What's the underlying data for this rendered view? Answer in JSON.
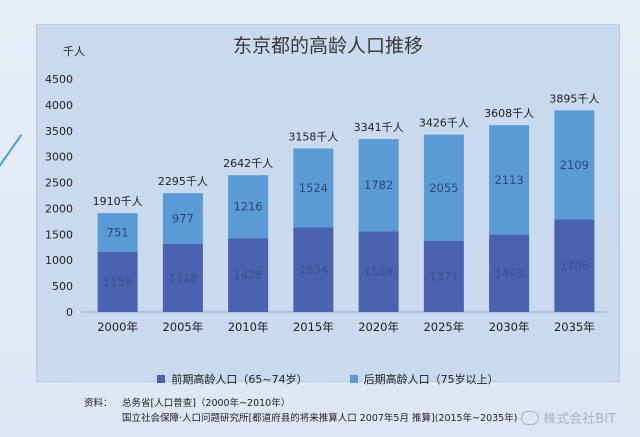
{
  "chart_data": {
    "type": "bar",
    "stacked": true,
    "title": "东京都的高龄人口推移",
    "unit_label": "千人",
    "categories": [
      "2000年",
      "2005年",
      "2010年",
      "2015年",
      "2020年",
      "2025年",
      "2030年",
      "2035年"
    ],
    "series": [
      {
        "name": "前期高龄人口（65~74岁）",
        "values": [
          1159,
          1318,
          1426,
          1634,
          1559,
          1371,
          1495,
          1786
        ],
        "color": "#4a62b0"
      },
      {
        "name": "后期高龄人口（75岁以上）",
        "values": [
          751,
          977,
          1216,
          1524,
          1782,
          2055,
          2113,
          2109
        ],
        "color": "#5b9bd5"
      }
    ],
    "totals_labels": [
      "1910千人",
      "2295千人",
      "2642千人",
      "3158千人",
      "3341千人",
      "3426千人",
      "3608千人",
      "3895千人"
    ],
    "ylim": [
      0,
      4500
    ],
    "yticks": [
      0,
      500,
      1000,
      1500,
      2000,
      2500,
      3000,
      3500,
      4000,
      4500
    ],
    "grid": false,
    "legend_position": "bottom"
  },
  "source": {
    "label": "资料：",
    "lines": [
      "总务省[人口普查]（2000年~2010年）",
      "国立社会保障·人口问题研究所[都道府县的将来推算人口 2007年5月 推算](2015年~2035年)"
    ]
  },
  "watermark": "株式会社BIT"
}
